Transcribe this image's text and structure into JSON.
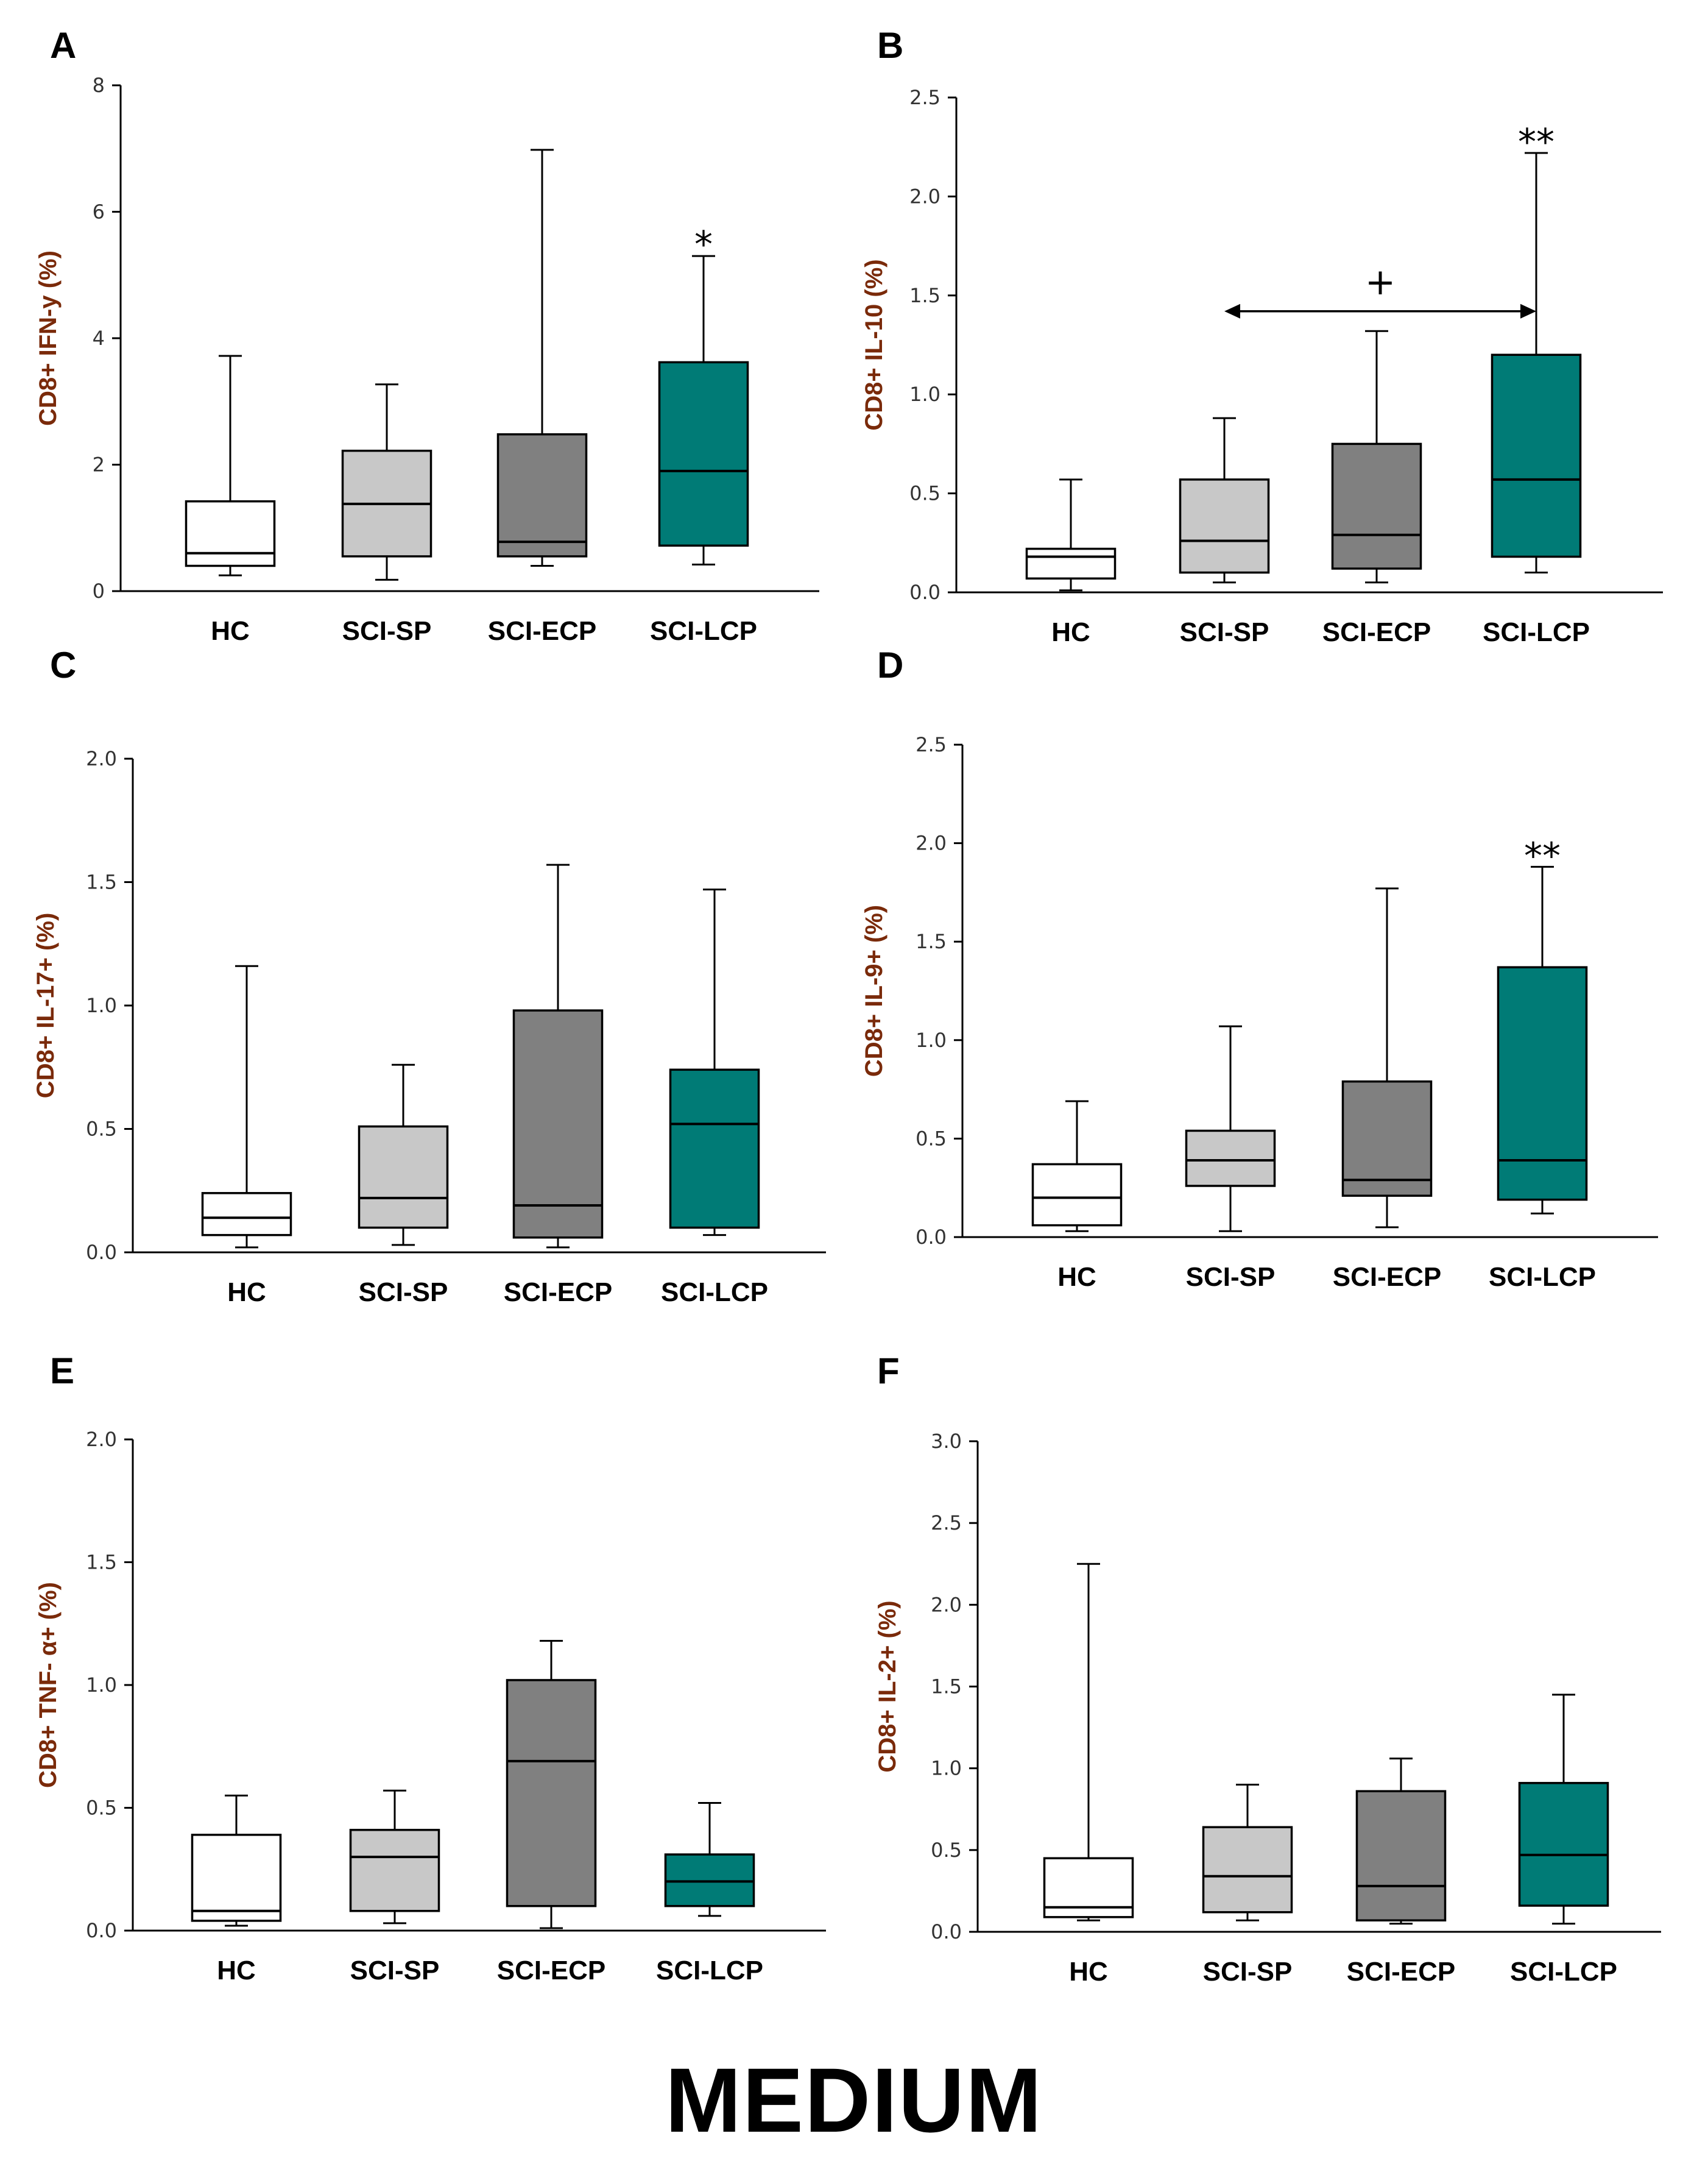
{
  "footer_label": "MEDIUM",
  "colors": {
    "HC": "#ffffff",
    "SCI-SP": "#c8c8c8",
    "SCI-ECP": "#808080",
    "SCI-LCP": "#007b76"
  },
  "chart_data": [
    {
      "panel": "A",
      "type": "box",
      "ylabel": "CD8+ IFN-y (%)",
      "ylim": [
        0,
        8
      ],
      "yticks": [
        "0",
        "2",
        "4",
        "6",
        "8"
      ],
      "ytick_values": [
        0,
        2,
        4,
        6,
        8
      ],
      "categories": [
        "HC",
        "SCI-SP",
        "SCI-ECP",
        "SCI-LCP"
      ],
      "boxes": [
        {
          "min": 0.25,
          "q1": 0.4,
          "median": 0.6,
          "q3": 1.42,
          "max": 3.72
        },
        {
          "min": 0.18,
          "q1": 0.55,
          "median": 1.38,
          "q3": 2.22,
          "max": 3.27
        },
        {
          "min": 0.4,
          "q1": 0.55,
          "median": 0.78,
          "q3": 2.48,
          "max": 6.98
        },
        {
          "min": 0.42,
          "q1": 0.72,
          "median": 1.9,
          "q3": 3.62,
          "max": 5.3
        }
      ],
      "annotations": [
        {
          "category": "SCI-LCP",
          "text": "*",
          "y": 5.5
        }
      ]
    },
    {
      "panel": "B",
      "type": "box",
      "ylabel": "CD8+ IL-10 (%)",
      "ylim": [
        0,
        2.5
      ],
      "yticks": [
        "0.0",
        "0.5",
        "1.0",
        "1.5",
        "2.0",
        "2.5"
      ],
      "ytick_values": [
        0,
        0.5,
        1.0,
        1.5,
        2.0,
        2.5
      ],
      "categories": [
        "HC",
        "SCI-SP",
        "SCI-ECP",
        "SCI-LCP"
      ],
      "boxes": [
        {
          "min": 0.01,
          "q1": 0.07,
          "median": 0.18,
          "q3": 0.22,
          "max": 0.57
        },
        {
          "min": 0.05,
          "q1": 0.1,
          "median": 0.26,
          "q3": 0.57,
          "max": 0.88
        },
        {
          "min": 0.05,
          "q1": 0.12,
          "median": 0.29,
          "q3": 0.75,
          "max": 1.32
        },
        {
          "min": 0.1,
          "q1": 0.18,
          "median": 0.57,
          "q3": 1.2,
          "max": 2.22
        }
      ],
      "annotations": [
        {
          "category": "SCI-LCP",
          "text": "**",
          "y": 2.28
        }
      ],
      "bracket": {
        "from": "SCI-SP",
        "to": "SCI-LCP",
        "y": 1.42,
        "text": "+"
      }
    },
    {
      "panel": "C",
      "type": "box",
      "ylabel": "CD8+ IL-17+ (%)",
      "ylim": [
        0,
        2.0
      ],
      "yticks": [
        "0.0",
        "0.5",
        "1.0",
        "1.5",
        "2.0"
      ],
      "ytick_values": [
        0,
        0.5,
        1.0,
        1.5,
        2.0
      ],
      "categories": [
        "HC",
        "SCI-SP",
        "SCI-ECP",
        "SCI-LCP"
      ],
      "boxes": [
        {
          "min": 0.02,
          "q1": 0.07,
          "median": 0.14,
          "q3": 0.24,
          "max": 1.16
        },
        {
          "min": 0.03,
          "q1": 0.1,
          "median": 0.22,
          "q3": 0.51,
          "max": 0.76
        },
        {
          "min": 0.02,
          "q1": 0.06,
          "median": 0.19,
          "q3": 0.98,
          "max": 1.57
        },
        {
          "min": 0.07,
          "q1": 0.1,
          "median": 0.52,
          "q3": 0.74,
          "max": 1.47
        }
      ],
      "annotations": []
    },
    {
      "panel": "D",
      "type": "box",
      "ylabel": "CD8+ IL-9+ (%)",
      "ylim": [
        0,
        2.5
      ],
      "yticks": [
        "0.0",
        "0.5",
        "1.0",
        "1.5",
        "2.0",
        "2.5"
      ],
      "ytick_values": [
        0,
        0.5,
        1.0,
        1.5,
        2.0,
        2.5
      ],
      "categories": [
        "HC",
        "SCI-SP",
        "SCI-ECP",
        "SCI-LCP"
      ],
      "boxes": [
        {
          "min": 0.03,
          "q1": 0.06,
          "median": 0.2,
          "q3": 0.37,
          "max": 0.69
        },
        {
          "min": 0.03,
          "q1": 0.26,
          "median": 0.39,
          "q3": 0.54,
          "max": 1.07
        },
        {
          "min": 0.05,
          "q1": 0.21,
          "median": 0.29,
          "q3": 0.79,
          "max": 1.77
        },
        {
          "min": 0.12,
          "q1": 0.19,
          "median": 0.39,
          "q3": 1.37,
          "max": 1.88
        }
      ],
      "annotations": [
        {
          "category": "SCI-LCP",
          "text": "**",
          "y": 1.94
        }
      ]
    },
    {
      "panel": "E",
      "type": "box",
      "ylabel": "CD8+ TNF- α+ (%)",
      "ylim": [
        0,
        2.0
      ],
      "yticks": [
        "0.0",
        "0.5",
        "1.0",
        "1.5",
        "2.0"
      ],
      "ytick_values": [
        0,
        0.5,
        1.0,
        1.5,
        2.0
      ],
      "categories": [
        "HC",
        "SCI-SP",
        "SCI-ECP",
        "SCI-LCP"
      ],
      "boxes": [
        {
          "min": 0.02,
          "q1": 0.04,
          "median": 0.08,
          "q3": 0.39,
          "max": 0.55
        },
        {
          "min": 0.03,
          "q1": 0.08,
          "median": 0.3,
          "q3": 0.41,
          "max": 0.57
        },
        {
          "min": 0.01,
          "q1": 0.1,
          "median": 0.69,
          "q3": 1.02,
          "max": 1.18
        },
        {
          "min": 0.06,
          "q1": 0.1,
          "median": 0.2,
          "q3": 0.31,
          "max": 0.52
        }
      ],
      "annotations": []
    },
    {
      "panel": "F",
      "type": "box",
      "ylabel": "CD8+ IL-2+ (%)",
      "ylim": [
        0,
        3.0
      ],
      "yticks": [
        "0.0",
        "0.5",
        "1.0",
        "1.5",
        "2.0",
        "2.5",
        "3.0"
      ],
      "ytick_values": [
        0,
        0.5,
        1.0,
        1.5,
        2.0,
        2.5,
        3.0
      ],
      "categories": [
        "HC",
        "SCI-SP",
        "SCI-ECP",
        "SCI-LCP"
      ],
      "boxes": [
        {
          "min": 0.07,
          "q1": 0.09,
          "median": 0.15,
          "q3": 0.45,
          "max": 2.25
        },
        {
          "min": 0.07,
          "q1": 0.12,
          "median": 0.34,
          "q3": 0.64,
          "max": 0.9
        },
        {
          "min": 0.05,
          "q1": 0.07,
          "median": 0.28,
          "q3": 0.86,
          "max": 1.06
        },
        {
          "min": 0.05,
          "q1": 0.16,
          "median": 0.47,
          "q3": 0.91,
          "max": 1.45
        }
      ],
      "annotations": []
    }
  ]
}
